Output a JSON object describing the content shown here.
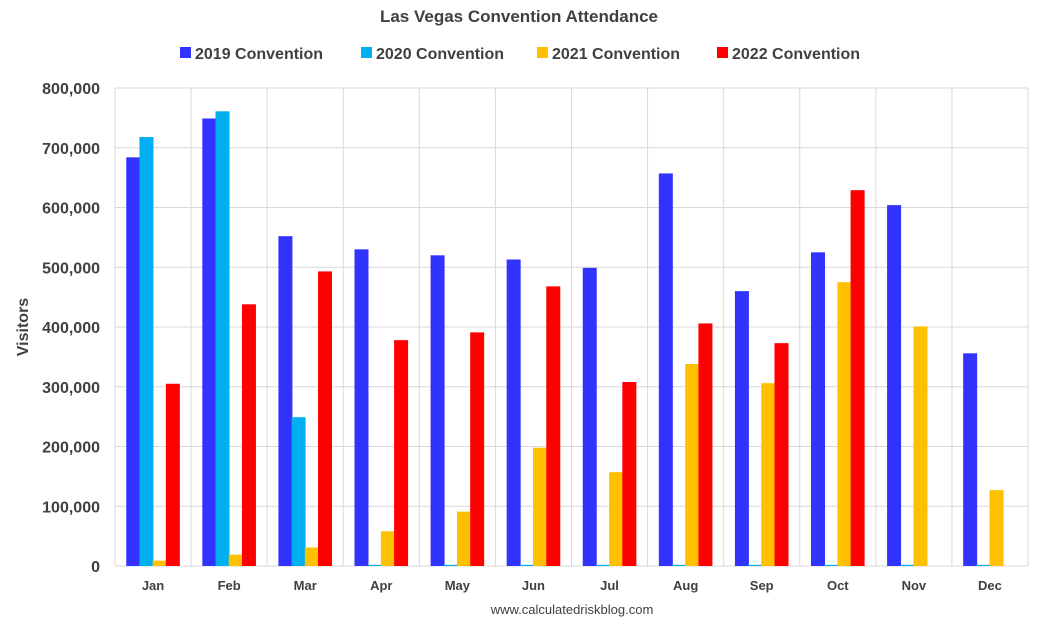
{
  "chart_data": {
    "type": "bar",
    "title": "Las Vegas Convention Attendance",
    "ylabel": "Visitors",
    "xlabel": "",
    "source": "www.calculatedriskblog.com",
    "categories": [
      "Jan",
      "Feb",
      "Mar",
      "Apr",
      "May",
      "Jun",
      "Jul",
      "Aug",
      "Sep",
      "Oct",
      "Nov",
      "Dec"
    ],
    "ylim": [
      0,
      800000
    ],
    "yticks": [
      0,
      100000,
      200000,
      300000,
      400000,
      500000,
      600000,
      700000,
      800000
    ],
    "ytick_labels": [
      "0",
      "100,000",
      "200,000",
      "300,000",
      "400,000",
      "500,000",
      "600,000",
      "700,000",
      "800,000"
    ],
    "grid": true,
    "legend_position": "top",
    "series": [
      {
        "name": "2019 Convention",
        "color": "#3333ff",
        "values": [
          684000,
          749000,
          552000,
          530000,
          520000,
          513000,
          499000,
          657000,
          460000,
          525000,
          604000,
          356000
        ]
      },
      {
        "name": "2020 Convention",
        "color": "#00b0f0",
        "values": [
          718000,
          761000,
          249000,
          2000,
          2000,
          2000,
          2000,
          2000,
          2000,
          2000,
          2000,
          2000
        ]
      },
      {
        "name": "2021 Convention",
        "color": "#ffc000",
        "values": [
          9000,
          19000,
          31000,
          58000,
          91000,
          198000,
          157000,
          338000,
          306000,
          475000,
          401000,
          127000
        ]
      },
      {
        "name": "2022 Convention",
        "color": "#ff0000",
        "values": [
          305000,
          438000,
          493000,
          378000,
          391000,
          468000,
          308000,
          406000,
          373000,
          629000,
          null,
          null
        ]
      }
    ]
  }
}
